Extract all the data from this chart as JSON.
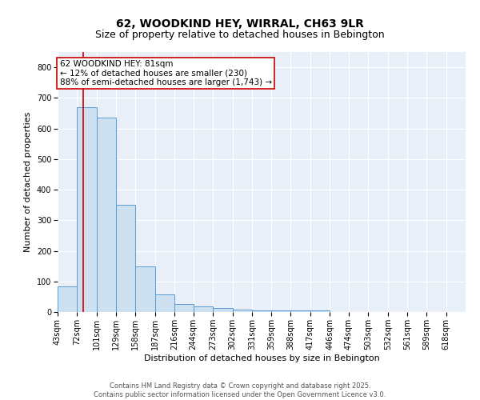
{
  "title_line1": "62, WOODKIND HEY, WIRRAL, CH63 9LR",
  "title_line2": "Size of property relative to detached houses in Bebington",
  "xlabel": "Distribution of detached houses by size in Bebington",
  "ylabel": "Number of detached properties",
  "bins": [
    43,
    72,
    101,
    129,
    158,
    187,
    216,
    244,
    273,
    302,
    331,
    359,
    388,
    417,
    446,
    474,
    503,
    532,
    561,
    589,
    618
  ],
  "bar_heights": [
    85,
    670,
    635,
    350,
    148,
    58,
    25,
    18,
    13,
    8,
    5,
    5,
    5,
    5,
    0,
    0,
    0,
    0,
    0,
    0
  ],
  "bar_color": "#cce0f0",
  "bar_edge_color": "#5b9bd5",
  "vline_x": 81,
  "vline_color": "#cc0000",
  "annotation_line1": "62 WOODKIND HEY: 81sqm",
  "annotation_line2": "← 12% of detached houses are smaller (230)",
  "annotation_line3": "88% of semi-detached houses are larger (1,743) →",
  "annotation_box_color": "#cc0000",
  "ylim": [
    0,
    850
  ],
  "yticks": [
    0,
    100,
    200,
    300,
    400,
    500,
    600,
    700,
    800
  ],
  "bg_color": "#e8eff8",
  "grid_color": "#ffffff",
  "footer_line1": "Contains HM Land Registry data © Crown copyright and database right 2025.",
  "footer_line2": "Contains public sector information licensed under the Open Government Licence v3.0.",
  "title_fontsize": 10,
  "subtitle_fontsize": 9,
  "axis_label_fontsize": 8,
  "tick_fontsize": 7,
  "annotation_fontsize": 7.5,
  "footer_fontsize": 6
}
